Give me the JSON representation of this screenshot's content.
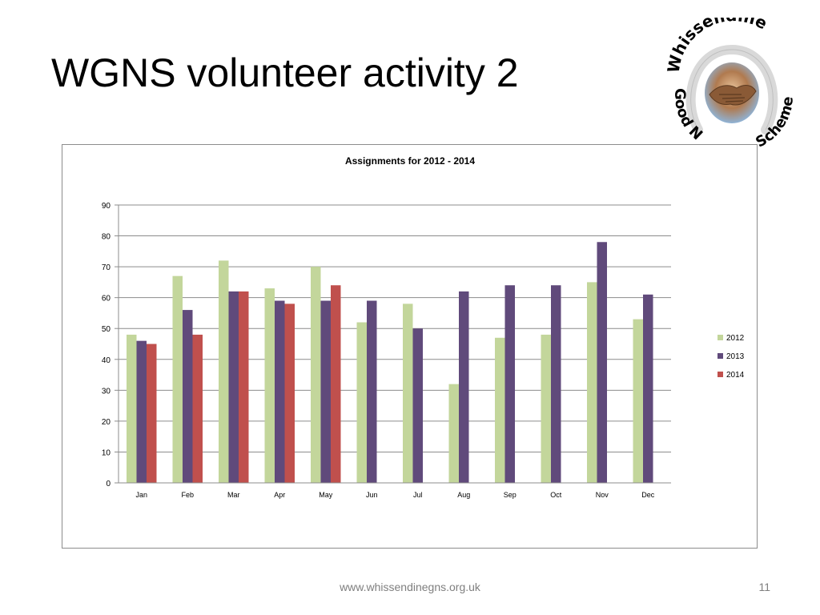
{
  "slide": {
    "title": "WGNS volunteer activity 2",
    "footer_url": "www.whissendinegns.org.uk",
    "page_number": "11"
  },
  "logo": {
    "text_top": "Whissendine",
    "text_left": "Good N",
    "text_right": "Scheme",
    "icon": "handshake-icon"
  },
  "colors": {
    "2012": "#c3d69b",
    "2013": "#604a7b",
    "2014": "#c0504d",
    "gridline": "#8c8c8c",
    "logo_text": "#000000"
  },
  "chart_data": {
    "type": "bar",
    "title": "Assignments for 2012 - 2014",
    "xlabel": "",
    "ylabel": "",
    "ylim": [
      0,
      90
    ],
    "yticks": [
      0,
      10,
      20,
      30,
      40,
      50,
      60,
      70,
      80,
      90
    ],
    "grid": true,
    "legend_position": "right",
    "categories": [
      "Jan",
      "Feb",
      "Mar",
      "Apr",
      "May",
      "Jun",
      "Jul",
      "Aug",
      "Sep",
      "Oct",
      "Nov",
      "Dec"
    ],
    "series": [
      {
        "name": "2012",
        "values": [
          48,
          67,
          72,
          63,
          70,
          52,
          58,
          32,
          47,
          48,
          65,
          53
        ]
      },
      {
        "name": "2013",
        "values": [
          46,
          56,
          62,
          59,
          59,
          59,
          50,
          62,
          64,
          64,
          78,
          61
        ]
      },
      {
        "name": "2014",
        "values": [
          45,
          48,
          62,
          58,
          64,
          null,
          null,
          null,
          null,
          null,
          null,
          null
        ]
      }
    ]
  }
}
